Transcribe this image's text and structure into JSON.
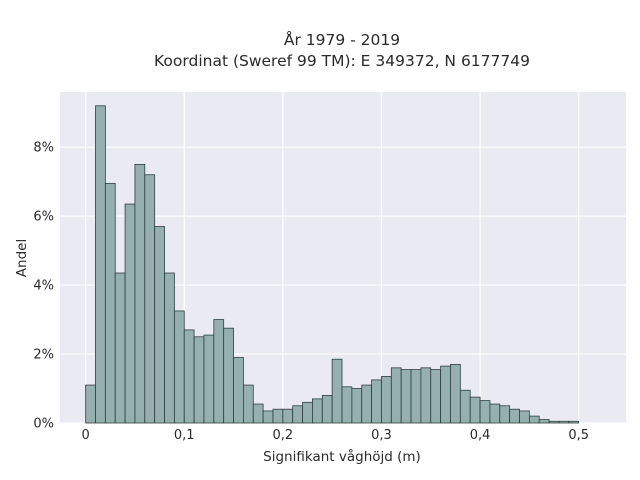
{
  "chart_data": {
    "type": "bar",
    "title_lines": [
      "År 1979 - 2019",
      "Koordinat (Sweref 99 TM): E 349372, N 6177749"
    ],
    "xlabel": "Signifikant våghöjd (m)",
    "ylabel": "Andel",
    "bin_width": 0.01,
    "bin_start": 0.0,
    "values_percent": [
      1.1,
      9.2,
      6.95,
      4.35,
      6.35,
      7.5,
      7.2,
      5.7,
      4.35,
      3.25,
      2.7,
      2.5,
      2.55,
      3.0,
      2.75,
      1.9,
      1.1,
      0.55,
      0.35,
      0.4,
      0.4,
      0.5,
      0.6,
      0.7,
      0.8,
      1.85,
      1.05,
      1.0,
      1.1,
      1.25,
      1.35,
      1.6,
      1.55,
      1.55,
      1.6,
      1.55,
      1.65,
      1.7,
      0.95,
      0.75,
      0.65,
      0.55,
      0.5,
      0.4,
      0.35,
      0.2,
      0.1,
      0.05,
      0.05,
      0.05
    ],
    "xlim": [
      -0.026,
      0.548
    ],
    "ylim": [
      0,
      9.6
    ],
    "x_ticks": [
      0,
      0.1,
      0.2,
      0.3,
      0.4,
      0.5
    ],
    "x_tick_labels": [
      "0",
      "0,1",
      "0,2",
      "0,3",
      "0,4",
      "0,5"
    ],
    "y_ticks": [
      0,
      2,
      4,
      6,
      8
    ],
    "y_tick_labels": [
      "0%",
      "2%",
      "4%",
      "6%",
      "8%"
    ],
    "grid": true,
    "colors": {
      "background": "#eaeaf2",
      "grid": "#ffffff",
      "bar_fill": "#95b0ae",
      "bar_edge": "#2f3f3d"
    }
  }
}
